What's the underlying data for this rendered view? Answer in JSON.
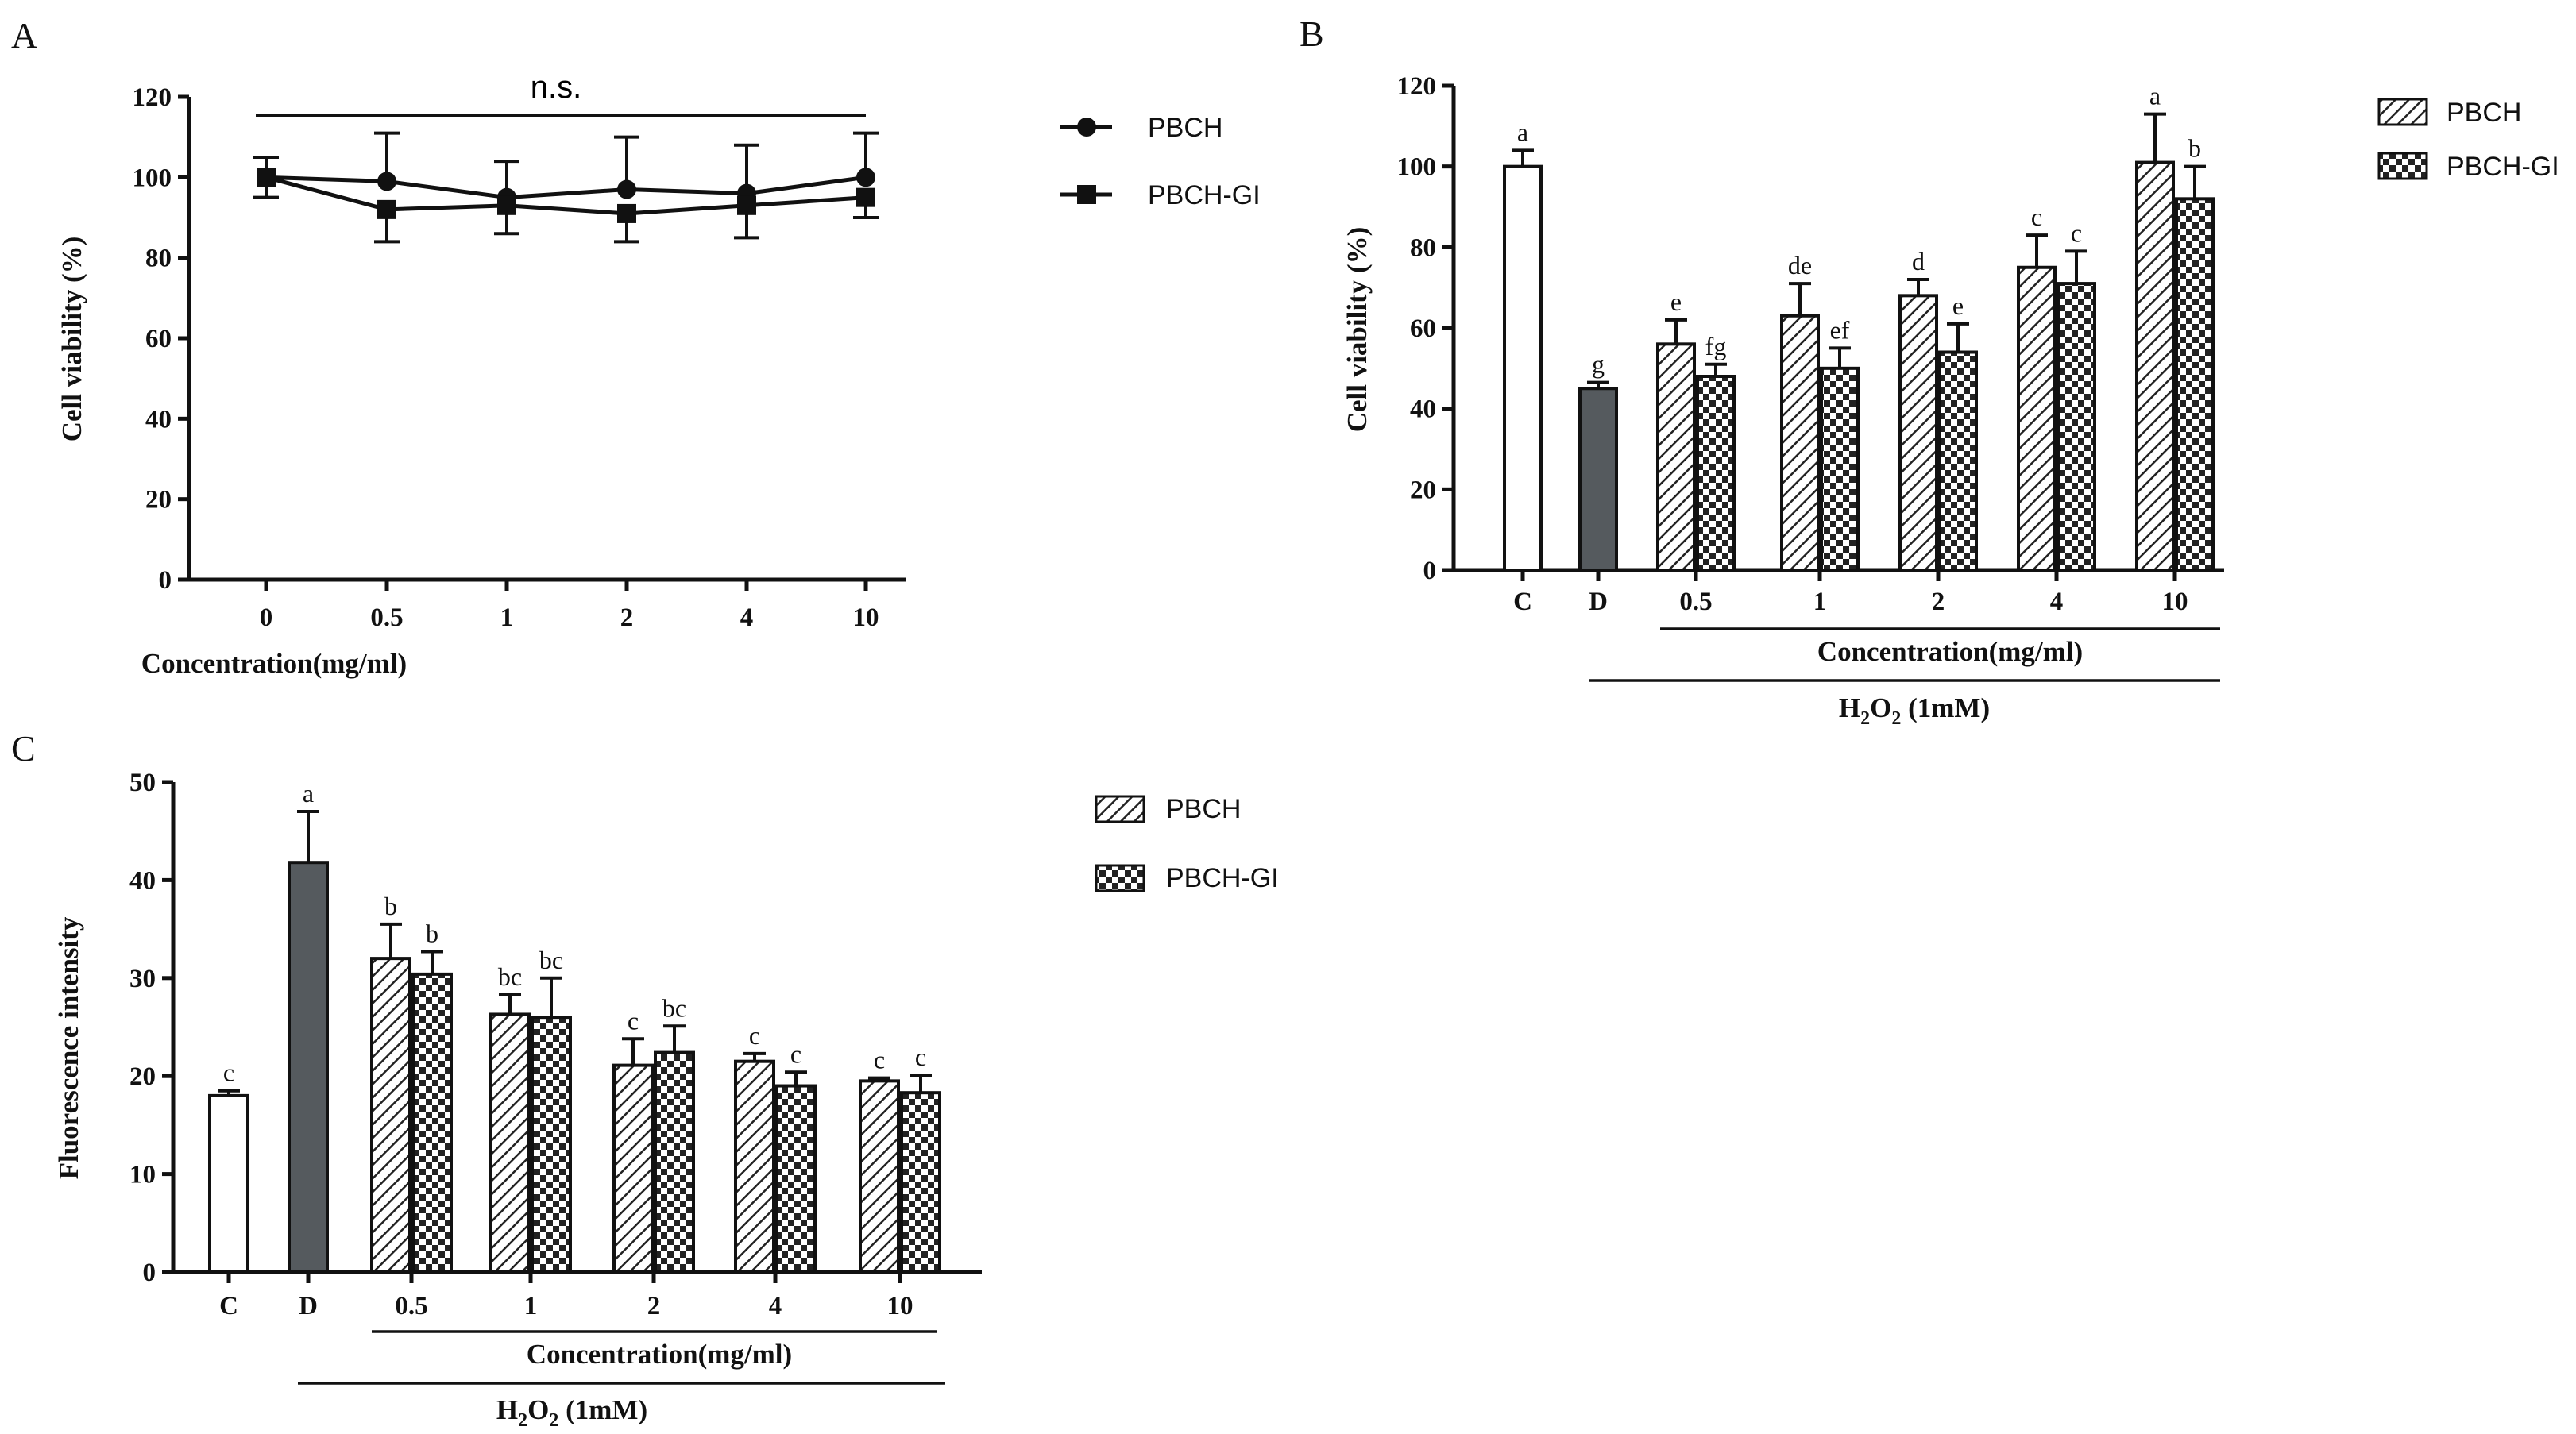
{
  "chart_data": [
    {
      "panel": "A",
      "type": "line",
      "categories": [
        "0",
        "0.5",
        "1",
        "2",
        "4",
        "10"
      ],
      "xlabel": "Concentration(mg/ml)",
      "ylabel": "Cell viability (%)",
      "ylim": [
        0,
        120
      ],
      "yticks": [
        "0",
        "20",
        "40",
        "60",
        "80",
        "100",
        "120"
      ],
      "annotation": "n.s.",
      "legend_position": "right",
      "series": [
        {
          "name": "PBCH",
          "marker": "circle",
          "values": [
            100,
            99,
            95,
            97,
            96,
            100
          ],
          "err": [
            5,
            12,
            9,
            13,
            12,
            11
          ]
        },
        {
          "name": "PBCH-GI",
          "marker": "square",
          "values": [
            100,
            92,
            93,
            91,
            93,
            95
          ],
          "err": [
            5,
            8,
            7,
            7,
            8,
            5
          ]
        }
      ]
    },
    {
      "panel": "B",
      "type": "bar",
      "ylabel": "Cell viability (%)",
      "ylim": [
        0,
        120
      ],
      "yticks": [
        "0",
        "20",
        "40",
        "60",
        "80",
        "100",
        "120"
      ],
      "xlabel": "Concentration(mg/ml)",
      "bracket_label": "H2O2 (1mM)",
      "legend_position": "top-right",
      "controls": [
        {
          "label": "C",
          "value": 100,
          "err": 4,
          "sig": "a",
          "color": "#ffffff"
        },
        {
          "label": "D",
          "value": 45,
          "err": 1.5,
          "sig": "g",
          "color": "#555a5e"
        }
      ],
      "categories": [
        "0.5",
        "1",
        "2",
        "4",
        "10"
      ],
      "series": [
        {
          "name": "PBCH",
          "pattern": "hatch",
          "values": [
            56,
            63,
            68,
            75,
            101
          ],
          "err": [
            6,
            8,
            4,
            8,
            12
          ],
          "sig": [
            "e",
            "de",
            "d",
            "c",
            "a"
          ]
        },
        {
          "name": "PBCH-GI",
          "pattern": "checker",
          "values": [
            48,
            50,
            54,
            71,
            92
          ],
          "err": [
            3,
            5,
            7,
            8,
            8
          ],
          "sig": [
            "fg",
            "ef",
            "e",
            "c",
            "b"
          ]
        }
      ]
    },
    {
      "panel": "C",
      "type": "bar",
      "ylabel": "Fluorescence intensity",
      "ylim": [
        0,
        50
      ],
      "yticks": [
        "0",
        "10",
        "20",
        "30",
        "40",
        "50"
      ],
      "xlabel": "Concentration(mg/ml)",
      "bracket_label": "H2O2 (1mM)",
      "legend_position": "top-right",
      "controls": [
        {
          "label": "C",
          "value": 18,
          "err": 0.5,
          "sig": "c",
          "color": "#ffffff"
        },
        {
          "label": "D",
          "value": 41.8,
          "err": 5.2,
          "sig": "a",
          "color": "#555a5e"
        }
      ],
      "categories": [
        "0.5",
        "1",
        "2",
        "4",
        "10"
      ],
      "series": [
        {
          "name": "PBCH",
          "pattern": "hatch",
          "values": [
            32,
            26.3,
            21.1,
            21.5,
            19.5
          ],
          "err": [
            3.5,
            2,
            2.7,
            0.8,
            0.3
          ],
          "sig": [
            "b",
            "bc",
            "c",
            "c",
            "c"
          ]
        },
        {
          "name": "PBCH-GI",
          "pattern": "checker",
          "values": [
            30.4,
            26,
            22.4,
            19,
            18.3
          ],
          "err": [
            2.3,
            4,
            2.7,
            1.4,
            1.8
          ],
          "sig": [
            "b",
            "bc",
            "bc",
            "c",
            "c"
          ]
        }
      ]
    }
  ]
}
